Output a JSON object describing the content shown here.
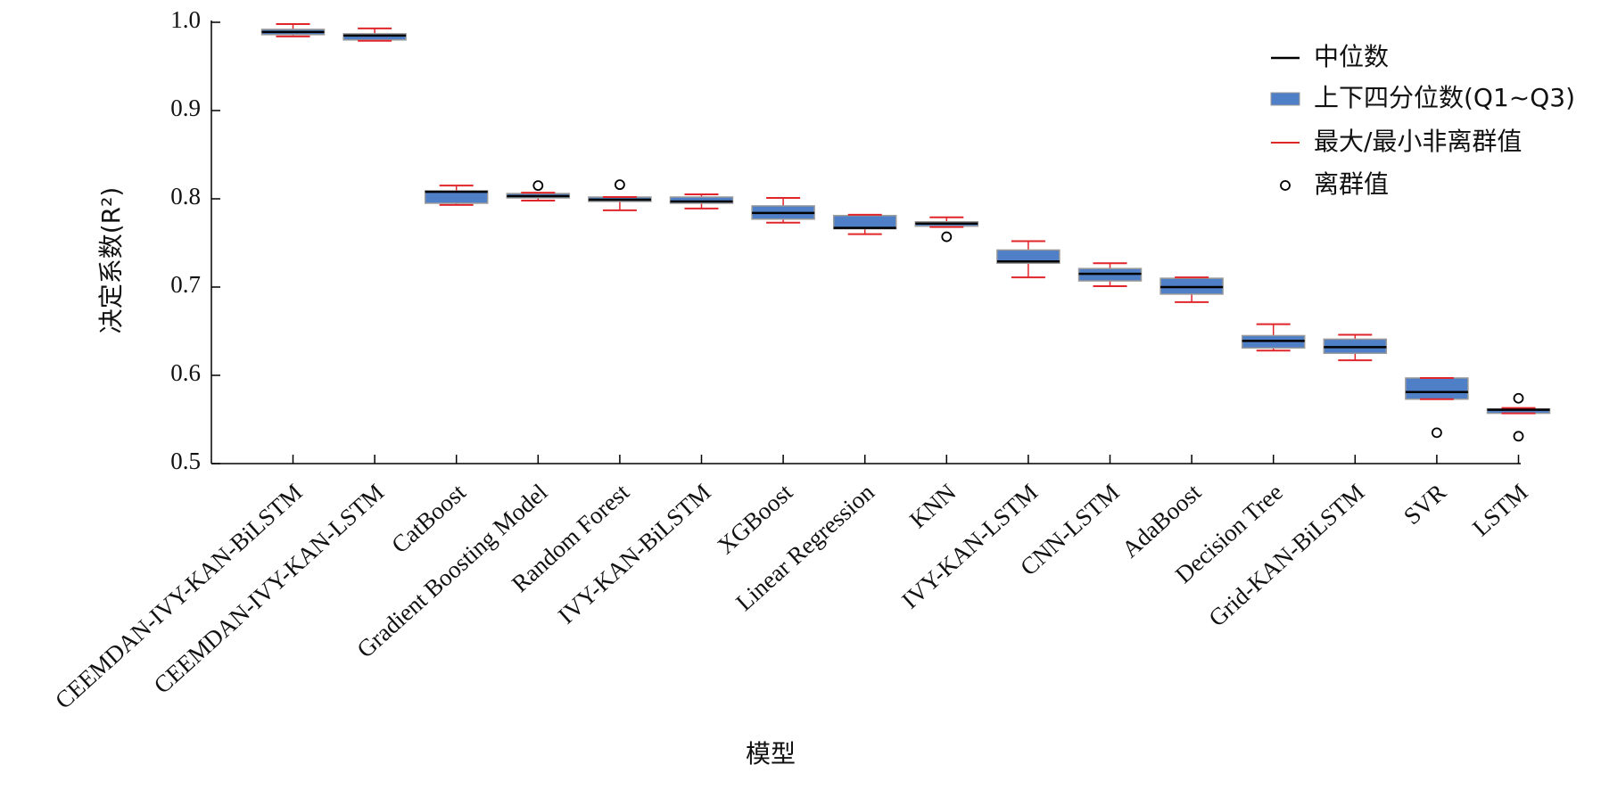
{
  "chart_data": {
    "type": "box",
    "x_label": "模型",
    "y_label": "决定系数(R²)",
    "categories": [
      "CEEMDAN-IVY-KAN-BiLSTM",
      "CEEMDAN-IVY-KAN-LSTM",
      "CatBoost",
      "Gradient Boosting Model",
      "Random Forest",
      "IVY-KAN-BiLSTM",
      "XGBoost",
      "Linear Regression",
      "KNN",
      "IVY-KAN-LSTM",
      "CNN-LSTM",
      "AdaBoost",
      "Decision Tree",
      "Grid-KAN-BiLSTM",
      "SVR",
      "LSTM"
    ],
    "min": [
      0.984,
      0.979,
      0.793,
      0.798,
      0.787,
      0.789,
      0.773,
      0.76,
      0.768,
      0.711,
      0.701,
      0.683,
      0.628,
      0.617,
      0.573,
      0.557
    ],
    "q1": [
      0.986,
      0.98,
      0.795,
      0.801,
      0.797,
      0.795,
      0.777,
      0.766,
      0.769,
      0.727,
      0.707,
      0.692,
      0.631,
      0.625,
      0.573,
      0.557
    ],
    "median": [
      0.989,
      0.985,
      0.808,
      0.803,
      0.799,
      0.797,
      0.784,
      0.767,
      0.772,
      0.729,
      0.715,
      0.7,
      0.639,
      0.632,
      0.581,
      0.561
    ],
    "q3": [
      0.992,
      0.987,
      0.809,
      0.806,
      0.802,
      0.802,
      0.792,
      0.781,
      0.774,
      0.742,
      0.721,
      0.71,
      0.645,
      0.641,
      0.597,
      0.562
    ],
    "max": [
      0.998,
      0.993,
      0.815,
      0.807,
      0.802,
      0.805,
      0.801,
      0.782,
      0.779,
      0.752,
      0.727,
      0.711,
      0.658,
      0.646,
      0.597,
      0.563
    ],
    "outliers": [
      [],
      [],
      [],
      [
        0.815
      ],
      [
        0.816
      ],
      [],
      [],
      [],
      [
        0.757
      ],
      [],
      [],
      [],
      [],
      [],
      [
        0.535
      ],
      [
        0.574,
        0.531
      ]
    ],
    "ylim": [
      0.5,
      1.0
    ],
    "yticks": [
      0.5,
      0.6,
      0.7,
      0.8,
      0.9,
      {
        "value": 1.0,
        "label": "1.0"
      }
    ],
    "box_color": "#4f7fc6",
    "box_edge_color": "#9a9a9a",
    "median_color": "#000000",
    "whisker_color": "#e0262b",
    "outlier_color": "#000000",
    "legend": [
      "中位数",
      "上下四分位数(Q1~Q3)",
      "最大/最小非离群值",
      "离群值"
    ],
    "legend_position": "upper right"
  }
}
